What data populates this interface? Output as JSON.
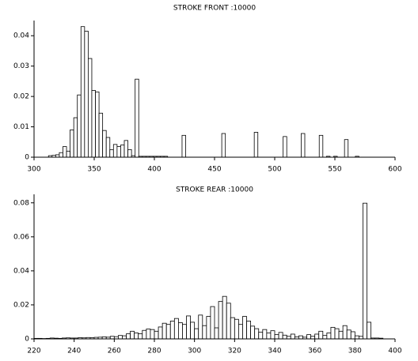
{
  "chart_data": [
    {
      "type": "histogram",
      "title": "STROKE FRONT :10000",
      "bins": [
        300,
        303,
        306,
        309,
        312,
        315,
        318,
        321,
        324,
        327,
        330,
        333,
        336,
        339,
        342,
        345,
        348,
        351,
        354,
        357,
        360,
        363,
        366,
        369,
        372,
        375,
        378,
        381,
        384,
        387,
        390,
        393,
        396,
        399,
        402,
        405,
        408,
        411,
        414,
        417,
        420,
        423,
        426,
        429,
        432,
        435,
        438,
        441,
        444,
        447,
        450,
        453,
        456,
        459,
        462,
        465,
        468,
        471,
        474,
        477,
        480,
        483,
        486,
        489,
        492,
        495,
        498,
        501,
        504,
        507,
        510,
        513,
        516,
        519,
        522,
        525,
        528,
        531,
        534,
        537,
        540,
        543,
        546,
        549,
        552,
        555,
        558,
        561,
        564,
        567,
        570,
        573,
        576,
        579,
        582,
        585,
        588,
        591,
        594,
        597,
        600
      ],
      "values": [
        0,
        0,
        0,
        0,
        0.0005,
        0.0006,
        0.0008,
        0.0015,
        0.0035,
        0.002,
        0.009,
        0.013,
        0.0205,
        0.043,
        0.0415,
        0.0325,
        0.022,
        0.0215,
        0.0145,
        0.0088,
        0.0065,
        0.0025,
        0.0042,
        0.0035,
        0.004,
        0.0055,
        0.0025,
        0.0005,
        0.0257,
        0.0003,
        0.0003,
        0.0003,
        0.0003,
        0.0003,
        0.0003,
        0.0003,
        0.0003,
        0,
        0,
        0,
        0,
        0.0072,
        0,
        0,
        0,
        0,
        0,
        0,
        0,
        0,
        0,
        0,
        0.0078,
        0,
        0,
        0,
        0,
        0,
        0,
        0,
        0,
        0.0082,
        0,
        0,
        0,
        0,
        0,
        0,
        0,
        0.0068,
        0,
        0,
        0,
        0,
        0.0078,
        0,
        0,
        0,
        0,
        0.0072,
        0,
        0.0003,
        0,
        0.0003,
        0,
        0,
        0.0058,
        0,
        0,
        0.0003,
        0,
        0,
        0,
        0,
        0,
        0,
        0,
        0,
        0,
        0
      ],
      "color": "#ffffff",
      "xlim": [
        300,
        600
      ],
      "xticks": [
        300,
        350,
        400,
        450,
        500,
        550,
        600
      ],
      "ylim": [
        0,
        0.045
      ],
      "yticks": [
        0,
        0.01,
        0.02,
        0.03,
        0.04
      ]
    },
    {
      "type": "histogram",
      "title": "STROKE REAR :10000",
      "bins": [
        220,
        222,
        224,
        226,
        228,
        230,
        232,
        234,
        236,
        238,
        240,
        242,
        244,
        246,
        248,
        250,
        252,
        254,
        256,
        258,
        260,
        262,
        264,
        266,
        268,
        270,
        272,
        274,
        276,
        278,
        280,
        282,
        284,
        286,
        288,
        290,
        292,
        294,
        296,
        298,
        300,
        302,
        304,
        306,
        308,
        310,
        312,
        314,
        316,
        318,
        320,
        322,
        324,
        326,
        328,
        330,
        332,
        334,
        336,
        338,
        340,
        342,
        344,
        346,
        348,
        350,
        352,
        354,
        356,
        358,
        360,
        362,
        364,
        366,
        368,
        370,
        372,
        374,
        376,
        378,
        380,
        382,
        384,
        386,
        388,
        390,
        392,
        394,
        396,
        398,
        400
      ],
      "values": [
        0.0003,
        0.0003,
        0.0002,
        0.0003,
        0.0005,
        0.0004,
        0.0003,
        0.0005,
        0.0006,
        0.0005,
        0.0005,
        0.0007,
        0.0006,
        0.0008,
        0.0007,
        0.0009,
        0.001,
        0.0012,
        0.001,
        0.0015,
        0.0013,
        0.002,
        0.0018,
        0.003,
        0.0045,
        0.0035,
        0.003,
        0.005,
        0.0058,
        0.0055,
        0.0045,
        0.007,
        0.0092,
        0.0085,
        0.0105,
        0.012,
        0.0095,
        0.0085,
        0.0135,
        0.0098,
        0.006,
        0.014,
        0.0078,
        0.0132,
        0.019,
        0.0065,
        0.022,
        0.025,
        0.021,
        0.0125,
        0.0115,
        0.0085,
        0.0132,
        0.0105,
        0.0075,
        0.006,
        0.004,
        0.0055,
        0.0035,
        0.0048,
        0.0025,
        0.0038,
        0.0022,
        0.0015,
        0.0028,
        0.0012,
        0.0018,
        0.001,
        0.0025,
        0.0015,
        0.0028,
        0.0045,
        0.002,
        0.0035,
        0.0068,
        0.006,
        0.0045,
        0.0078,
        0.0052,
        0.0042,
        0.0018,
        0.0015,
        0.0798,
        0.0098,
        0.0005,
        0.0005,
        0.0004,
        0,
        0,
        0
      ],
      "color": "#ffffff",
      "xlim": [
        220,
        400
      ],
      "xticks": [
        220,
        240,
        260,
        280,
        300,
        320,
        340,
        360,
        380,
        400
      ],
      "ylim": [
        0,
        0.085
      ],
      "yticks": [
        0,
        0.02,
        0.04,
        0.06,
        0.08
      ]
    }
  ]
}
